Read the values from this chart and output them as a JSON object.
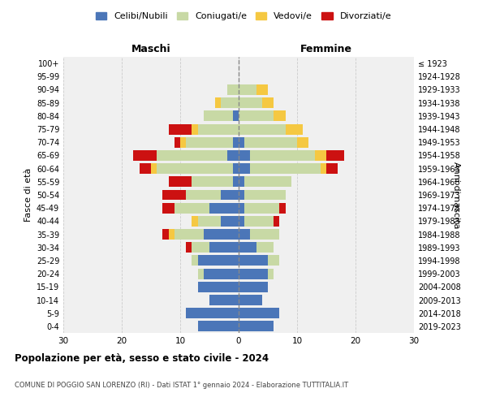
{
  "age_groups": [
    "0-4",
    "5-9",
    "10-14",
    "15-19",
    "20-24",
    "25-29",
    "30-34",
    "35-39",
    "40-44",
    "45-49",
    "50-54",
    "55-59",
    "60-64",
    "65-69",
    "70-74",
    "75-79",
    "80-84",
    "85-89",
    "90-94",
    "95-99",
    "100+"
  ],
  "birth_years": [
    "2019-2023",
    "2014-2018",
    "2009-2013",
    "2004-2008",
    "1999-2003",
    "1994-1998",
    "1989-1993",
    "1984-1988",
    "1979-1983",
    "1974-1978",
    "1969-1973",
    "1964-1968",
    "1959-1963",
    "1954-1958",
    "1949-1953",
    "1944-1948",
    "1939-1943",
    "1934-1938",
    "1929-1933",
    "1924-1928",
    "≤ 1923"
  ],
  "male": {
    "celibi": [
      7,
      9,
      5,
      7,
      6,
      7,
      5,
      6,
      3,
      5,
      3,
      1,
      1,
      2,
      1,
      0,
      1,
      0,
      0,
      0,
      0
    ],
    "coniugati": [
      0,
      0,
      0,
      0,
      1,
      1,
      3,
      5,
      4,
      6,
      6,
      7,
      13,
      12,
      8,
      7,
      5,
      3,
      2,
      0,
      0
    ],
    "vedovi": [
      0,
      0,
      0,
      0,
      0,
      0,
      0,
      1,
      1,
      0,
      0,
      0,
      1,
      0,
      1,
      1,
      0,
      1,
      0,
      0,
      0
    ],
    "divorziati": [
      0,
      0,
      0,
      0,
      0,
      0,
      1,
      1,
      0,
      2,
      4,
      4,
      2,
      4,
      1,
      4,
      0,
      0,
      0,
      0,
      0
    ]
  },
  "female": {
    "nubili": [
      6,
      7,
      4,
      5,
      5,
      5,
      3,
      2,
      1,
      1,
      1,
      1,
      2,
      2,
      1,
      0,
      0,
      0,
      0,
      0,
      0
    ],
    "coniugate": [
      0,
      0,
      0,
      0,
      1,
      2,
      3,
      5,
      5,
      6,
      7,
      8,
      12,
      11,
      9,
      8,
      6,
      4,
      3,
      0,
      0
    ],
    "vedove": [
      0,
      0,
      0,
      0,
      0,
      0,
      0,
      0,
      0,
      0,
      0,
      0,
      1,
      2,
      2,
      3,
      2,
      2,
      2,
      0,
      0
    ],
    "divorziate": [
      0,
      0,
      0,
      0,
      0,
      0,
      0,
      0,
      1,
      1,
      0,
      0,
      2,
      3,
      0,
      0,
      0,
      0,
      0,
      0,
      0
    ]
  },
  "colors": {
    "celibi": "#4B76B8",
    "coniugati": "#C8D9A5",
    "vedovi": "#F5C842",
    "divorziati": "#CC1111"
  },
  "title": "Popolazione per età, sesso e stato civile - 2024",
  "subtitle": "COMUNE DI POGGIO SAN LORENZO (RI) - Dati ISTAT 1° gennaio 2024 - Elaborazione TUTTITALIA.IT",
  "xlabel_left": "Maschi",
  "xlabel_right": "Femmine",
  "ylabel_left": "Fasce di età",
  "ylabel_right": "Anni di nascita",
  "xlim": 30,
  "bg_color": "#FFFFFF",
  "plot_bg": "#F0F0F0",
  "grid_color": "#CCCCCC",
  "legend_labels": [
    "Celibi/Nubili",
    "Coniugati/e",
    "Vedovi/e",
    "Divorziati/e"
  ]
}
